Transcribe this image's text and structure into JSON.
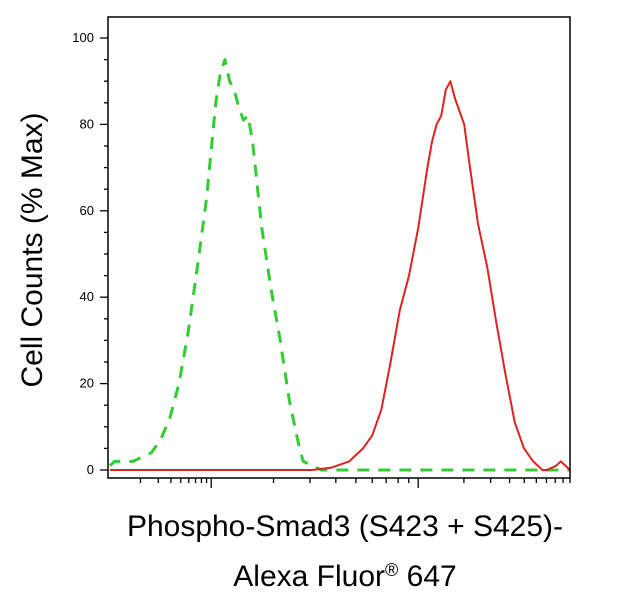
{
  "chart_data": {
    "type": "line",
    "title": "",
    "xlabel": {
      "line1": "Phospho-Smad3 (S423 + S425)-",
      "line2_prefix": "Alexa Fluor",
      "line2_mark": "®",
      "line2_suffix": " 647"
    },
    "ylabel": "Cell Counts (% Max)",
    "x_scale": "log",
    "xlim": [
      0,
      100
    ],
    "ylim": [
      0,
      100
    ],
    "y_ticks": [
      0,
      20,
      40,
      60,
      80,
      100
    ],
    "grid": false,
    "series": [
      {
        "style": "dashed",
        "color": "#33cc33",
        "x": [
          0,
          1,
          3,
          5,
          7,
          9,
          11,
          13,
          15,
          17,
          19,
          21,
          22,
          23,
          24,
          25,
          26,
          27,
          28,
          29,
          30,
          31,
          32,
          33,
          35,
          37,
          39,
          41,
          42,
          44,
          46,
          100
        ],
        "y": [
          1,
          2,
          2,
          2,
          3,
          4,
          7,
          12,
          20,
          32,
          47,
          63,
          74,
          85,
          92,
          95,
          90,
          88,
          84,
          81,
          82,
          76,
          66,
          56,
          42,
          30,
          16,
          6,
          2,
          1,
          0,
          0
        ]
      },
      {
        "style": "solid",
        "color": "#dd2222",
        "x": [
          0,
          30,
          44,
          48,
          52,
          55,
          57,
          59,
          61,
          63,
          65,
          67,
          69,
          70,
          71,
          72,
          73,
          74,
          75,
          76,
          77,
          78,
          80,
          82,
          84,
          86,
          88,
          90,
          92,
          94,
          95,
          97,
          98,
          100
        ],
        "y": [
          0,
          0,
          0,
          0.5,
          2,
          5,
          8,
          14,
          25,
          37,
          45,
          56,
          70,
          76,
          80,
          82,
          88,
          90,
          86,
          83,
          80,
          72,
          57,
          47,
          34,
          22,
          11,
          5,
          2,
          0,
          0,
          1,
          2,
          0
        ]
      }
    ]
  }
}
